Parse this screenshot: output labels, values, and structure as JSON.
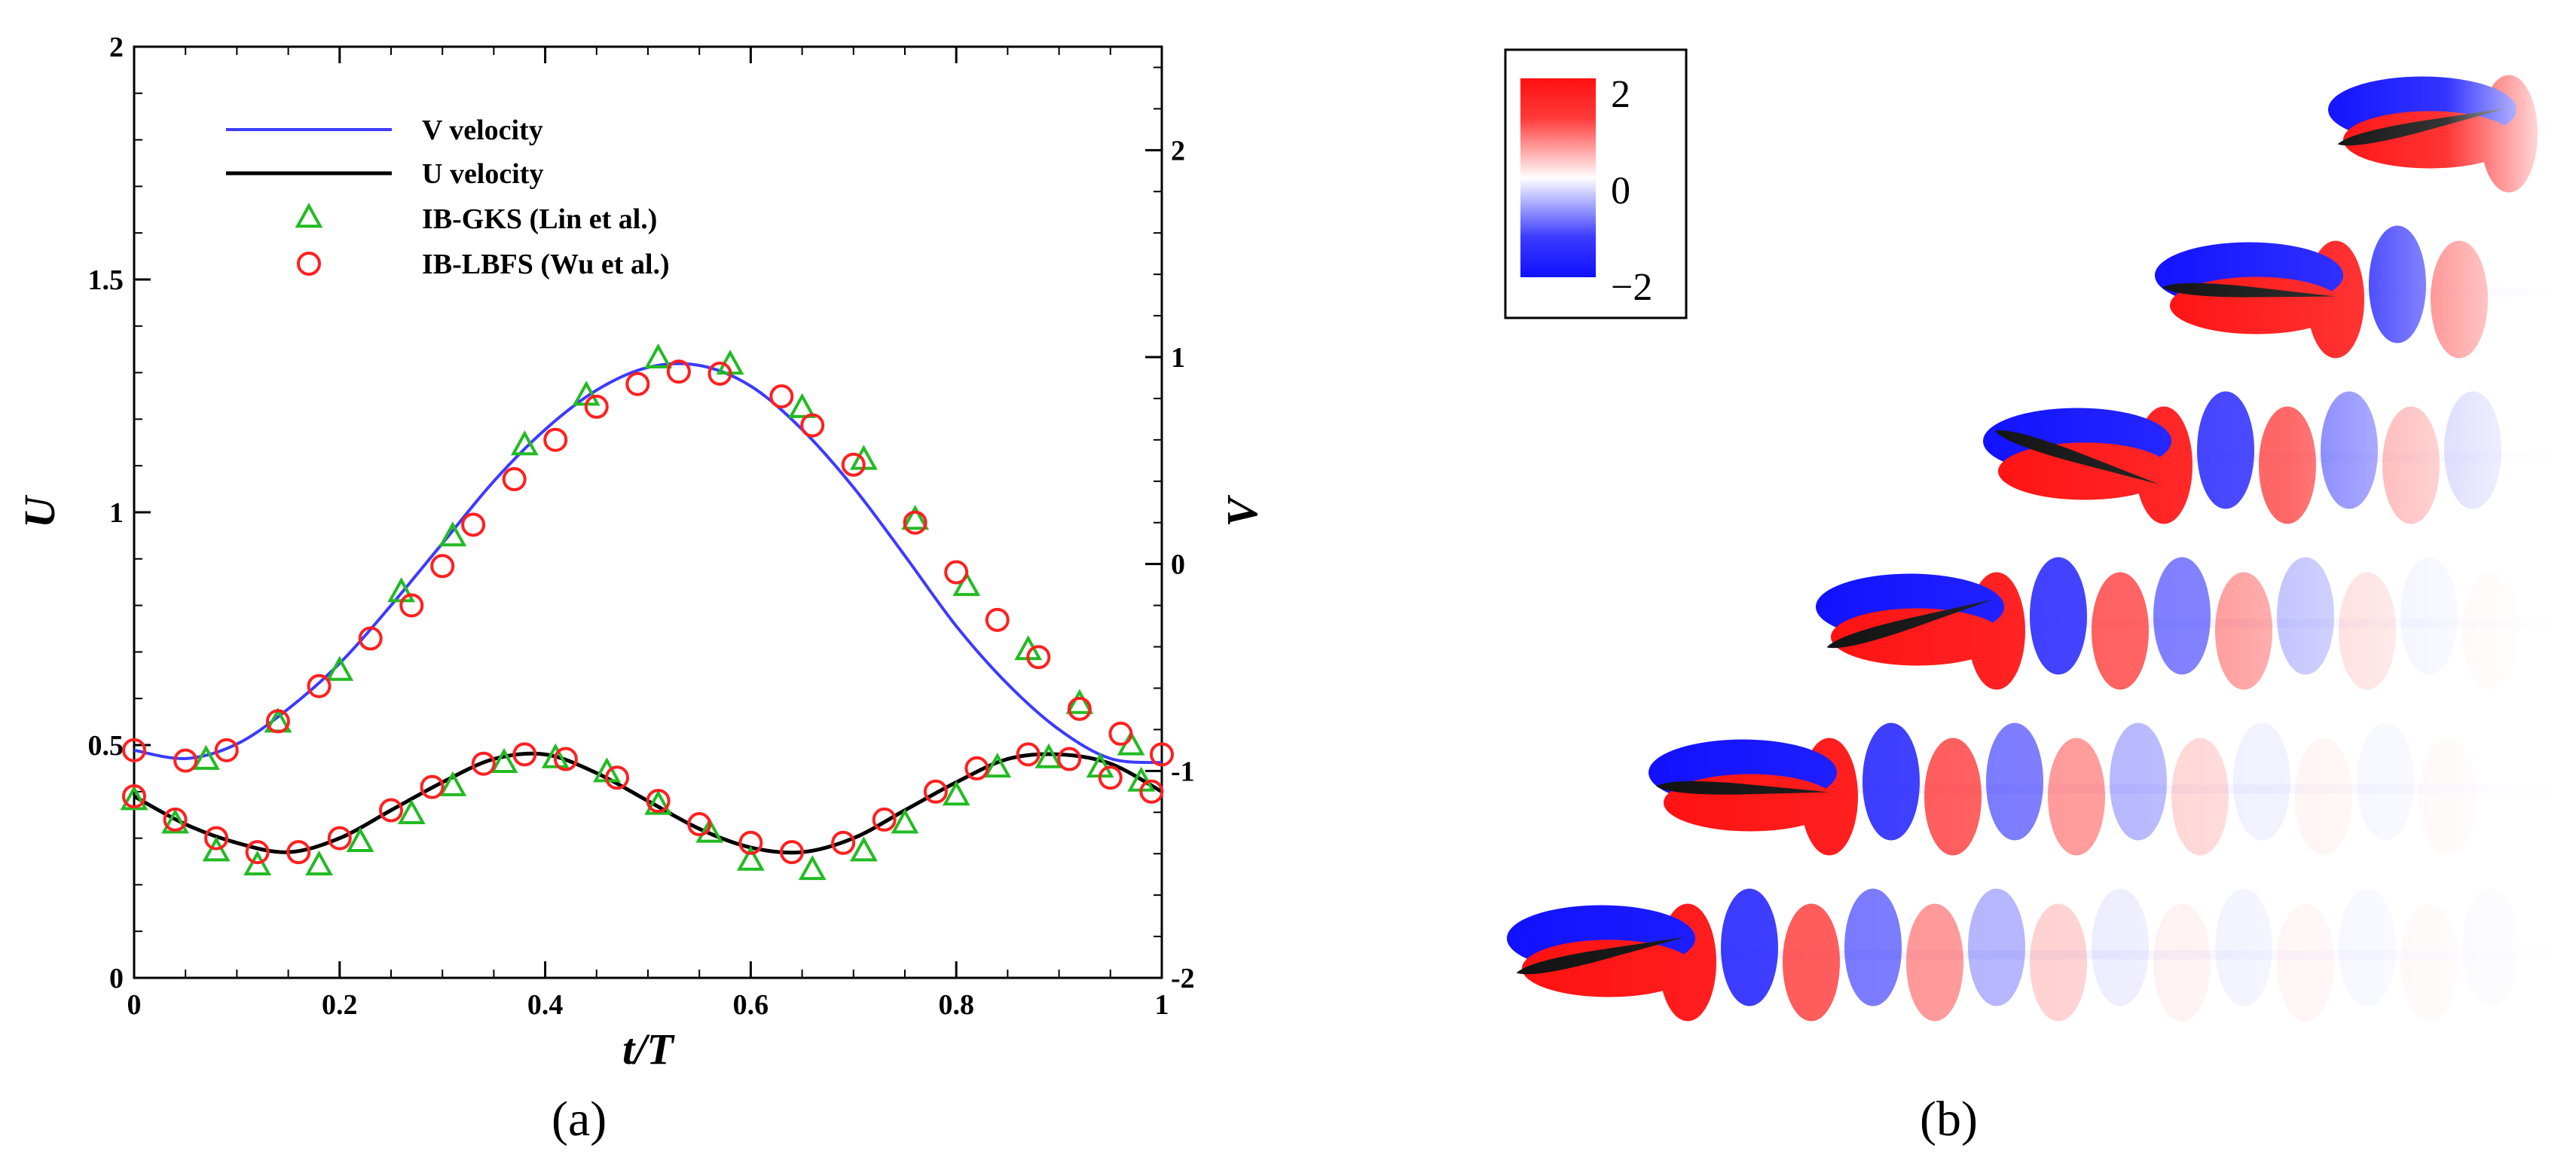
{
  "panel_labels": {
    "a": "(a)",
    "b": "(b)"
  },
  "colors": {
    "v_line": "#3b3bff",
    "u_line": "#000000",
    "ib_gks": "#22bb22",
    "ib_lbfs": "#ff2020",
    "vort_pos": "#ff1010",
    "vort_neg": "#1010ff",
    "airfoil": "#111111"
  },
  "chart_data": [
    {
      "type": "line",
      "title": "",
      "xlabel": "t/T",
      "ylabel": "U",
      "y2label": "V",
      "xlim": [
        0,
        1
      ],
      "ylim": [
        0,
        2
      ],
      "y2lim": [
        -2,
        2.5
      ],
      "xticks": [
        "0",
        "0.2",
        "0.4",
        "0.6",
        "0.8",
        "1"
      ],
      "yticks": [
        "0",
        "0.5",
        "1",
        "1.5",
        "2"
      ],
      "y2ticks": [
        "-2",
        "-1",
        "0",
        "1",
        "2"
      ],
      "legend_position": "top-left",
      "series": [
        {
          "name": "V velocity",
          "axis": "right",
          "style": "line"
        },
        {
          "name": "U velocity",
          "axis": "left",
          "style": "line"
        },
        {
          "name": "IB-GKS (Lin et al.)",
          "axis": "both",
          "style": "triangle"
        },
        {
          "name": "IB-LBFS (Wu et al.)",
          "axis": "both",
          "style": "circle"
        }
      ],
      "v_curve": {
        "x": [
          0,
          0.05,
          0.1,
          0.15,
          0.2,
          0.25,
          0.3,
          0.35,
          0.4,
          0.45,
          0.5,
          0.55,
          0.6,
          0.65,
          0.7,
          0.75,
          0.8,
          0.85,
          0.9,
          0.95,
          1.0
        ],
        "y": [
          -0.9,
          -0.94,
          -0.87,
          -0.7,
          -0.48,
          -0.2,
          0.1,
          0.4,
          0.65,
          0.84,
          0.95,
          0.96,
          0.86,
          0.65,
          0.37,
          0.04,
          -0.3,
          -0.58,
          -0.8,
          -0.94,
          -0.96
        ]
      },
      "u_curve": {
        "x": [
          0,
          0.05,
          0.1,
          0.15,
          0.2,
          0.25,
          0.3,
          0.35,
          0.4,
          0.45,
          0.5,
          0.55,
          0.6,
          0.65,
          0.7,
          0.75,
          0.8,
          0.85,
          0.9,
          0.95,
          1.0
        ],
        "y": [
          0.39,
          0.33,
          0.29,
          0.27,
          0.3,
          0.36,
          0.42,
          0.47,
          0.48,
          0.44,
          0.38,
          0.32,
          0.28,
          0.27,
          0.3,
          0.36,
          0.42,
          0.47,
          0.48,
          0.46,
          0.4
        ]
      },
      "ib_gks_v": {
        "x": [
          0.07,
          0.14,
          0.2,
          0.26,
          0.31,
          0.38,
          0.44,
          0.51,
          0.58,
          0.65,
          0.71,
          0.76,
          0.81,
          0.87,
          0.92,
          0.97
        ],
        "y": [
          -0.95,
          -0.77,
          -0.52,
          -0.14,
          0.13,
          0.57,
          0.81,
          0.99,
          0.96,
          0.75,
          0.5,
          0.21,
          -0.11,
          -0.42,
          -0.68,
          -0.88
        ]
      },
      "ib_gks_u": {
        "x": [
          0,
          0.04,
          0.08,
          0.12,
          0.18,
          0.22,
          0.27,
          0.31,
          0.36,
          0.41,
          0.46,
          0.51,
          0.56,
          0.6,
          0.66,
          0.71,
          0.75,
          0.8,
          0.84,
          0.89,
          0.94,
          0.98
        ],
        "y": [
          0.38,
          0.33,
          0.27,
          0.24,
          0.24,
          0.29,
          0.35,
          0.41,
          0.46,
          0.47,
          0.44,
          0.37,
          0.31,
          0.25,
          0.23,
          0.27,
          0.33,
          0.39,
          0.45,
          0.47,
          0.45,
          0.42
        ]
      },
      "ib_lbfs_v": {
        "x": [
          0,
          0.05,
          0.09,
          0.14,
          0.18,
          0.23,
          0.27,
          0.3,
          0.33,
          0.37,
          0.41,
          0.45,
          0.49,
          0.53,
          0.57,
          0.63,
          0.66,
          0.7,
          0.76,
          0.8,
          0.84,
          0.88,
          0.92,
          0.96,
          1.0
        ],
        "y": [
          -0.9,
          -0.95,
          -0.9,
          -0.76,
          -0.59,
          -0.36,
          -0.2,
          -0.01,
          0.19,
          0.41,
          0.6,
          0.76,
          0.87,
          0.93,
          0.92,
          0.81,
          0.67,
          0.48,
          0.2,
          -0.04,
          -0.27,
          -0.45,
          -0.7,
          -0.82,
          -0.92
        ]
      },
      "ib_lbfs_u": {
        "x": [
          0,
          0.04,
          0.08,
          0.12,
          0.16,
          0.2,
          0.25,
          0.29,
          0.34,
          0.38,
          0.42,
          0.47,
          0.51,
          0.55,
          0.6,
          0.64,
          0.69,
          0.73,
          0.78,
          0.82,
          0.87,
          0.91,
          0.95,
          0.99
        ],
        "y": [
          0.39,
          0.34,
          0.3,
          0.27,
          0.27,
          0.3,
          0.36,
          0.41,
          0.46,
          0.48,
          0.47,
          0.43,
          0.38,
          0.33,
          0.29,
          0.27,
          0.29,
          0.34,
          0.4,
          0.45,
          0.48,
          0.47,
          0.43,
          0.4
        ]
      }
    },
    {
      "type": "heatmap",
      "colorbar": {
        "ticks": [
          "2",
          "0",
          "−2"
        ],
        "range": [
          -2,
          2
        ]
      },
      "frames": 6
    }
  ]
}
